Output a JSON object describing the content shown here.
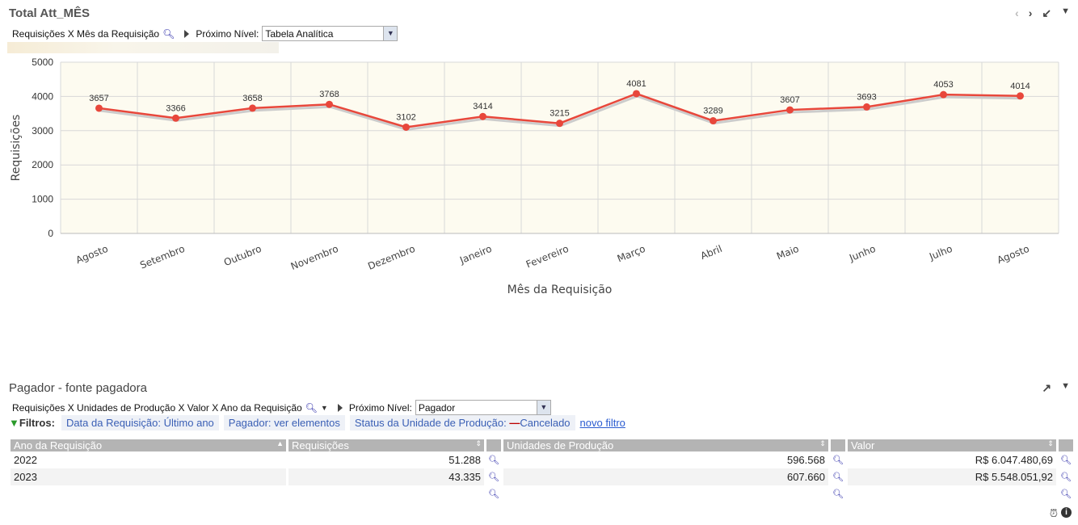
{
  "chart_panel": {
    "title": "Total Att_MÊS",
    "breadcrumb": "Requisições X Mês da Requisição",
    "next_level_label": "Próximo Nível:",
    "next_level_value": "Tabela Analítica",
    "icons": [
      "chevron-left-icon",
      "chevron-right-icon",
      "collapse-icon",
      "caret-down-icon"
    ]
  },
  "chart_data": {
    "type": "line",
    "xlabel": "Mês da Requisição",
    "ylabel": "Requisições",
    "ylim": [
      0,
      5000
    ],
    "yticks": [
      0,
      1000,
      2000,
      3000,
      4000,
      5000
    ],
    "grid": true,
    "categories": [
      "Agosto",
      "Setembro",
      "Outubro",
      "Novembro",
      "Dezembro",
      "Janeiro",
      "Fevereiro",
      "Março",
      "Abril",
      "Maio",
      "Junho",
      "Julho",
      "Agosto"
    ],
    "values": [
      3657,
      3366,
      3658,
      3768,
      3102,
      3414,
      3215,
      4081,
      3289,
      3607,
      3693,
      4053,
      4014
    ],
    "color": "#e8473b",
    "plot_bg": "#fdfbf0"
  },
  "table_panel": {
    "title": "Pagador - fonte pagadora",
    "breadcrumb": "Requisições X Unidades de Produção X Valor X Ano da Requisição",
    "next_level_label": "Próximo Nível:",
    "next_level_value": "Pagador",
    "filters_label": "Filtros:",
    "filters": [
      {
        "key": "Data da Requisição:",
        "value": "Último ano"
      },
      {
        "key": "Pagador:",
        "value": "ver elementos"
      },
      {
        "key": "Status da Unidade de Produção:",
        "value": "Cancelado"
      }
    ],
    "new_filter": "novo filtro",
    "columns": [
      "Ano da Requisição",
      "Requisições",
      "Unidades de Produção",
      "Valor"
    ],
    "rows": [
      [
        "2022",
        "51.288",
        "596.568",
        "R$ 6.047.480,69"
      ],
      [
        "2023",
        "43.335",
        "607.660",
        "R$ 5.548.051,92"
      ]
    ]
  }
}
